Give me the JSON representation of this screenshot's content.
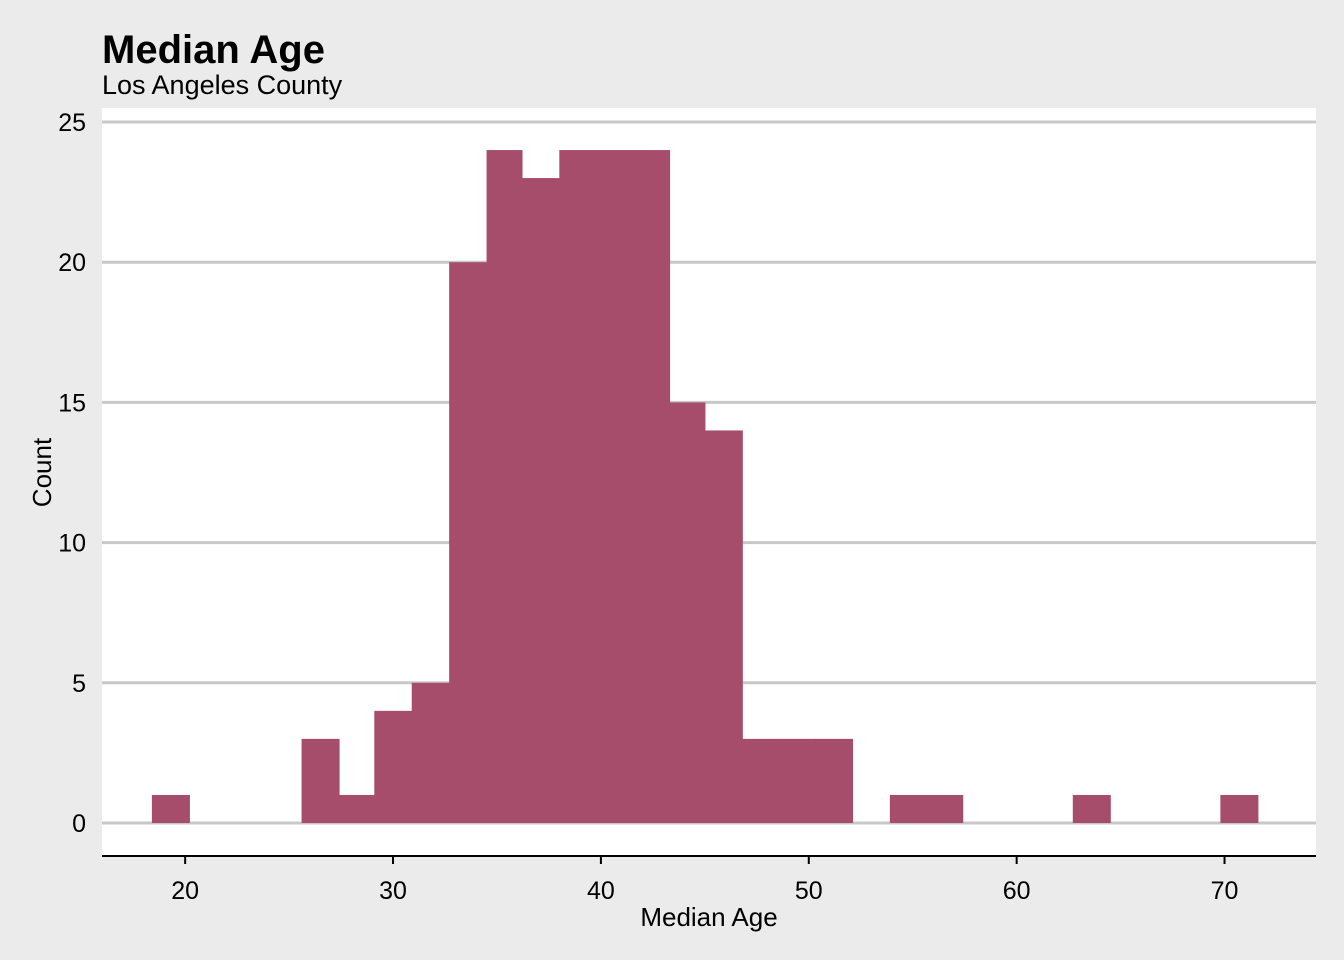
{
  "chart_data": {
    "type": "bar",
    "title": "Median Age",
    "subtitle": "Los Angeles County",
    "xlabel": "Median Age",
    "ylabel": "Count",
    "xlim": [
      16,
      74.4
    ],
    "ylim": [
      0,
      25
    ],
    "x_ticks": [
      20,
      30,
      40,
      50,
      60,
      70
    ],
    "y_ticks": [
      0,
      5,
      10,
      15,
      20,
      25
    ],
    "bin_width": 1.77,
    "bins": [
      {
        "start": 18.4,
        "end": 20.2,
        "count": 1
      },
      {
        "start": 25.6,
        "end": 27.4,
        "count": 3
      },
      {
        "start": 27.4,
        "end": 29.1,
        "count": 1
      },
      {
        "start": 29.1,
        "end": 30.9,
        "count": 4
      },
      {
        "start": 30.9,
        "end": 32.7,
        "count": 5
      },
      {
        "start": 32.7,
        "end": 34.5,
        "count": 20
      },
      {
        "start": 34.5,
        "end": 36.2,
        "count": 24
      },
      {
        "start": 36.2,
        "end": 38.0,
        "count": 23
      },
      {
        "start": 38.0,
        "end": 39.8,
        "count": 24
      },
      {
        "start": 39.8,
        "end": 41.5,
        "count": 24
      },
      {
        "start": 41.5,
        "end": 43.3,
        "count": 24
      },
      {
        "start": 43.3,
        "end": 45.0,
        "count": 15
      },
      {
        "start": 45.0,
        "end": 46.8,
        "count": 14
      },
      {
        "start": 46.8,
        "end": 48.6,
        "count": 3
      },
      {
        "start": 48.6,
        "end": 50.3,
        "count": 3
      },
      {
        "start": 50.3,
        "end": 52.1,
        "count": 3
      },
      {
        "start": 53.9,
        "end": 55.6,
        "count": 1
      },
      {
        "start": 55.6,
        "end": 57.4,
        "count": 1
      },
      {
        "start": 62.7,
        "end": 64.5,
        "count": 1
      },
      {
        "start": 69.8,
        "end": 71.6,
        "count": 1
      }
    ],
    "grid": "horizontal",
    "legend": "none",
    "colors": {
      "bar": "#a64d6b",
      "background": "#ebebeb",
      "panel": "#ffffff",
      "grid": "#c8c8c8"
    }
  }
}
